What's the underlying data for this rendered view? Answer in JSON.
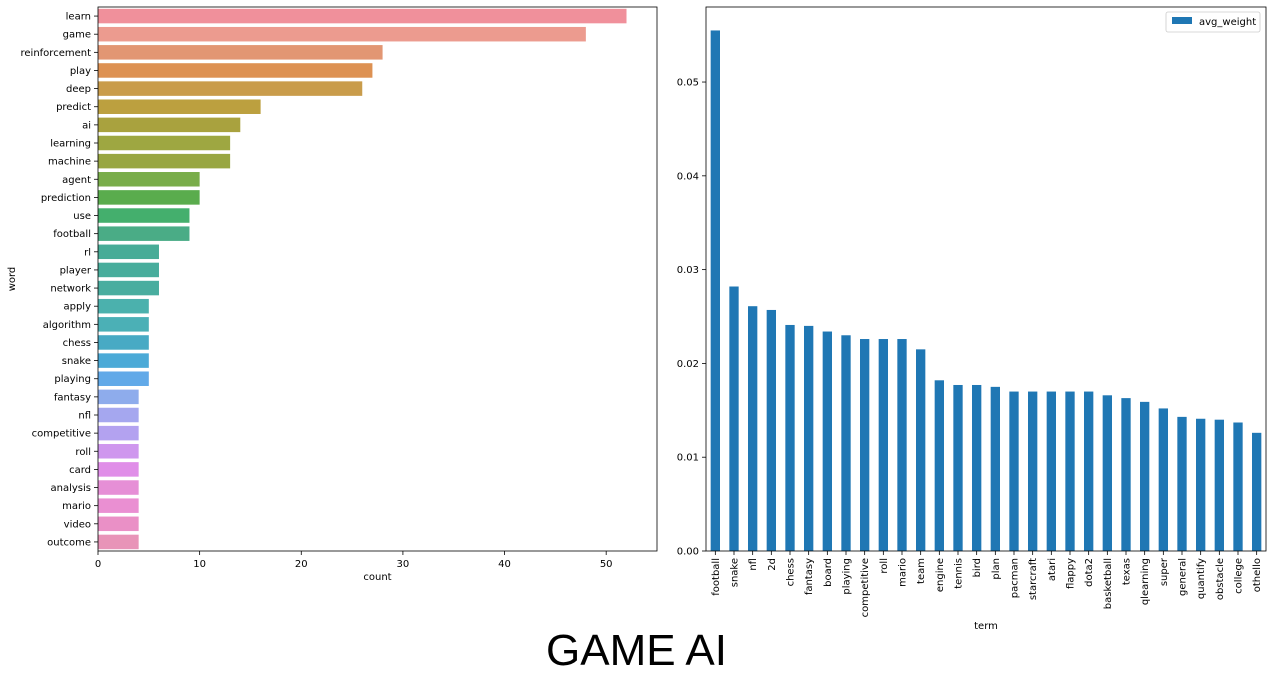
{
  "figure_title": "GAME AI",
  "chart_data": [
    {
      "type": "bar",
      "orientation": "horizontal",
      "xlabel": "count",
      "ylabel": "word",
      "xlim": [
        0,
        55
      ],
      "xticks": [
        0,
        10,
        20,
        30,
        40,
        50
      ],
      "grid": false,
      "categories": [
        "learn",
        "game",
        "reinforcement",
        "play",
        "deep",
        "predict",
        "ai",
        "learning",
        "machine",
        "agent",
        "prediction",
        "use",
        "football",
        "rl",
        "player",
        "network",
        "apply",
        "algorithm",
        "chess",
        "snake",
        "playing",
        "fantasy",
        "nfl",
        "competitive",
        "roll",
        "card",
        "analysis",
        "mario",
        "video",
        "outcome"
      ],
      "values": [
        52,
        48,
        28,
        27,
        26,
        16,
        14,
        13,
        13,
        10,
        10,
        9,
        9,
        6,
        6,
        6,
        5,
        5,
        5,
        5,
        5,
        4,
        4,
        4,
        4,
        4,
        4,
        4,
        4,
        4
      ],
      "colors": [
        "#f0909b",
        "#ec9b8f",
        "#e29673",
        "#dd9152",
        "#c99c4b",
        "#bca03f",
        "#a9a23e",
        "#9ea741",
        "#98a641",
        "#79ad4a",
        "#5aac4d",
        "#44af6d",
        "#4aac86",
        "#47ac97",
        "#48ad9c",
        "#49ad9f",
        "#4bb1ad",
        "#4bb0b6",
        "#48aac4",
        "#4baad7",
        "#61a9e8",
        "#8eacec",
        "#a5a7ef",
        "#b3a2f0",
        "#cf97ee",
        "#e08ee8",
        "#e68fd6",
        "#ea8fd2",
        "#ea90c6",
        "#e894b8"
      ]
    },
    {
      "type": "bar",
      "orientation": "vertical",
      "xlabel": "term",
      "ylabel": "",
      "ylim": [
        0,
        0.058
      ],
      "yticks": [
        "0.00",
        "0.01",
        "0.02",
        "0.03",
        "0.04",
        "0.05"
      ],
      "grid": false,
      "legend": {
        "position": "top-right",
        "entries": [
          "avg_weight"
        ]
      },
      "bar_color": "#1f77b4",
      "categories": [
        "football",
        "snake",
        "nfl",
        "2d",
        "chess",
        "fantasy",
        "board",
        "playing",
        "competitive",
        "roll",
        "mario",
        "team",
        "engine",
        "tennis",
        "bird",
        "plan",
        "pacman",
        "starcraft",
        "atari",
        "flappy",
        "dota2",
        "basketball",
        "texas",
        "qlearning",
        "super",
        "general",
        "quantify",
        "obstacle",
        "college",
        "othello"
      ],
      "series": [
        {
          "name": "avg_weight",
          "values": [
            0.0555,
            0.0282,
            0.0261,
            0.0257,
            0.0241,
            0.024,
            0.0234,
            0.023,
            0.0226,
            0.0226,
            0.0226,
            0.0215,
            0.0182,
            0.0177,
            0.0177,
            0.0175,
            0.017,
            0.017,
            0.017,
            0.017,
            0.017,
            0.0166,
            0.0163,
            0.0159,
            0.0152,
            0.0143,
            0.0141,
            0.014,
            0.0137,
            0.0126
          ]
        }
      ]
    }
  ]
}
